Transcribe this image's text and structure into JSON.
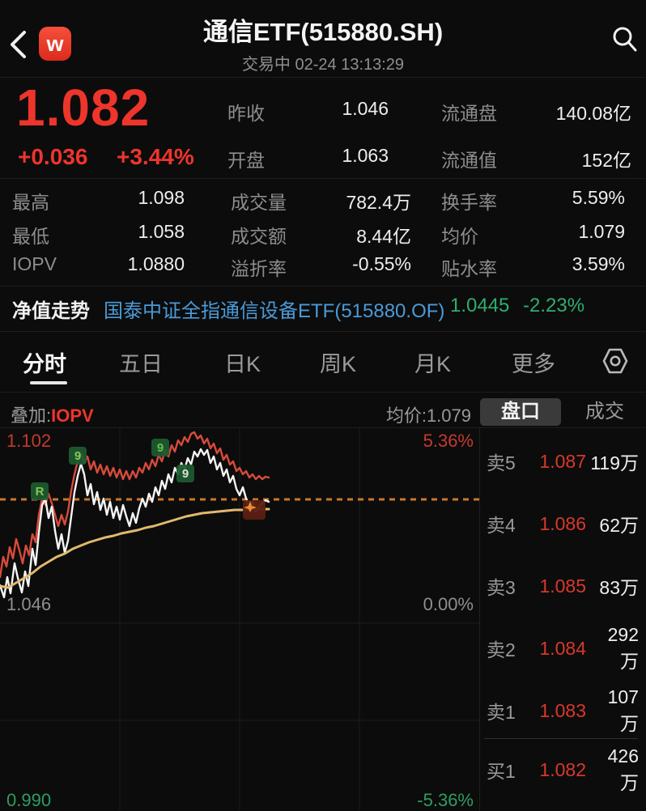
{
  "colors": {
    "red": "#ee352b",
    "book_red": "#d8382c",
    "chart_red": "#c53a2e",
    "green": "#2fae6e",
    "dim_green": "#2f9c62",
    "blue": "#4a9ad8",
    "white_line": "#f5f5f5",
    "red_line": "#d84b3a",
    "yellow_line": "#e2b96d",
    "dashed": "#c8782a",
    "badge_bg": "#1e5c30",
    "pin_bg": "#5d1f12",
    "pin_fg": "#f08c2e"
  },
  "header": {
    "title": "通信ETF(515880.SH)",
    "status_line": "交易中  02-24 13:13:29",
    "logo_letter": "w"
  },
  "quote": {
    "price": "1.082",
    "change": "+0.036",
    "change_pct": "+3.44%",
    "top_rows": [
      {
        "label": "昨收",
        "value": "1.046"
      },
      {
        "label": "流通盘",
        "value": "140.08亿"
      },
      {
        "label": "开盘",
        "value": "1.063"
      },
      {
        "label": "流通值",
        "value": "152亿"
      }
    ],
    "stats": [
      [
        {
          "label": "最高",
          "value": "1.098"
        },
        {
          "label": "成交量",
          "value": "782.4万"
        },
        {
          "label": "换手率",
          "value": "5.59%"
        }
      ],
      [
        {
          "label": "最低",
          "value": "1.058"
        },
        {
          "label": "成交额",
          "value": "8.44亿"
        },
        {
          "label": "均价",
          "value": "1.079"
        }
      ],
      [
        {
          "label": "IOPV",
          "value": "1.0880"
        },
        {
          "label": "溢折率",
          "value": "-0.55%"
        },
        {
          "label": "贴水率",
          "value": "3.59%"
        }
      ]
    ]
  },
  "nav_row": {
    "label": "净值走势",
    "fund_name": "国泰中证全指通信设备ETF(515880.OF)",
    "nav_value": "1.0445",
    "nav_pct": "-2.23%"
  },
  "tabs": [
    "分时",
    "五日",
    "日K",
    "周K",
    "月K",
    "更多"
  ],
  "chart_header": {
    "overlay_label": "叠加:",
    "overlay_value": "IOPV",
    "avg_label": "均价:1.079",
    "panel_tab_active": "盘口",
    "panel_tab_inactive": "成交"
  },
  "chart_data": {
    "type": "line",
    "title": "分时 (intraday minute chart)",
    "labels": {
      "top_left": "1.102",
      "top_right": "5.36%",
      "mid_left": "1.046",
      "mid_right": "0.00%",
      "bottom_left": "0.990",
      "bottom_right": "-5.36%"
    },
    "axis": {
      "high": 1.102,
      "prev_close": 1.046,
      "low": 0.99,
      "pct_range": 5.36,
      "last_price": 1.082,
      "avg_price": 1.079
    },
    "grid": {
      "vx": [
        148,
        296,
        444
      ],
      "hy": [
        242,
        362
      ]
    },
    "dashed_y": 89,
    "series": [
      {
        "name": "iopv",
        "points": [
          [
            0,
            185
          ],
          [
            4,
            160
          ],
          [
            8,
            172
          ],
          [
            12,
            148
          ],
          [
            16,
            162
          ],
          [
            20,
            138
          ],
          [
            24,
            152
          ],
          [
            28,
            168
          ],
          [
            32,
            146
          ],
          [
            36,
            158
          ],
          [
            40,
            132
          ],
          [
            44,
            142
          ],
          [
            48,
            108
          ],
          [
            52,
            88
          ],
          [
            56,
            96
          ],
          [
            60,
            82
          ],
          [
            64,
            94
          ],
          [
            68,
            108
          ],
          [
            72,
            122
          ],
          [
            76,
            108
          ],
          [
            80,
            120
          ],
          [
            84,
            104
          ],
          [
            88,
            78
          ],
          [
            92,
            58
          ],
          [
            96,
            42
          ],
          [
            100,
            32
          ],
          [
            104,
            44
          ],
          [
            108,
            36
          ],
          [
            112,
            52
          ],
          [
            116,
            42
          ],
          [
            120,
            56
          ],
          [
            124,
            46
          ],
          [
            128,
            58
          ],
          [
            132,
            48
          ],
          [
            136,
            60
          ],
          [
            140,
            50
          ],
          [
            144,
            62
          ],
          [
            148,
            52
          ],
          [
            152,
            64
          ],
          [
            156,
            54
          ],
          [
            160,
            64
          ],
          [
            164,
            54
          ],
          [
            168,
            62
          ],
          [
            172,
            50
          ],
          [
            176,
            56
          ],
          [
            180,
            44
          ],
          [
            184,
            52
          ],
          [
            188,
            40
          ],
          [
            192,
            48
          ],
          [
            196,
            34
          ],
          [
            200,
            42
          ],
          [
            204,
            28
          ],
          [
            208,
            36
          ],
          [
            212,
            22
          ],
          [
            216,
            30
          ],
          [
            220,
            16
          ],
          [
            224,
            22
          ],
          [
            228,
            12
          ],
          [
            232,
            18
          ],
          [
            236,
            8
          ],
          [
            240,
            6
          ],
          [
            244,
            14
          ],
          [
            248,
            10
          ],
          [
            252,
            20
          ],
          [
            256,
            14
          ],
          [
            260,
            26
          ],
          [
            264,
            20
          ],
          [
            268,
            32
          ],
          [
            272,
            26
          ],
          [
            276,
            40
          ],
          [
            280,
            34
          ],
          [
            284,
            46
          ],
          [
            288,
            42
          ],
          [
            292,
            54
          ],
          [
            296,
            50
          ],
          [
            300,
            58
          ],
          [
            304,
            54
          ],
          [
            308,
            62
          ],
          [
            312,
            58
          ],
          [
            316,
            64
          ],
          [
            320,
            60
          ],
          [
            324,
            64
          ],
          [
            328,
            61
          ],
          [
            332,
            62
          ]
        ]
      },
      {
        "name": "price",
        "points": [
          [
            0,
            195
          ],
          [
            5,
            210
          ],
          [
            9,
            185
          ],
          [
            13,
            205
          ],
          [
            18,
            168
          ],
          [
            22,
            186
          ],
          [
            27,
            204
          ],
          [
            31,
            178
          ],
          [
            35,
            196
          ],
          [
            40,
            150
          ],
          [
            44,
            170
          ],
          [
            48,
            130
          ],
          [
            52,
            96
          ],
          [
            56,
            88
          ],
          [
            60,
            112
          ],
          [
            64,
            98
          ],
          [
            68,
            128
          ],
          [
            72,
            150
          ],
          [
            76,
            132
          ],
          [
            80,
            155
          ],
          [
            84,
            140
          ],
          [
            88,
            110
          ],
          [
            92,
            80
          ],
          [
            96,
            60
          ],
          [
            100,
            45
          ],
          [
            104,
            58
          ],
          [
            108,
            84
          ],
          [
            112,
            70
          ],
          [
            116,
            95
          ],
          [
            120,
            80
          ],
          [
            124,
            102
          ],
          [
            128,
            88
          ],
          [
            132,
            108
          ],
          [
            136,
            92
          ],
          [
            140,
            112
          ],
          [
            144,
            98
          ],
          [
            148,
            114
          ],
          [
            152,
            96
          ],
          [
            156,
            110
          ],
          [
            160,
            122
          ],
          [
            164,
            106
          ],
          [
            168,
            118
          ],
          [
            172,
            100
          ],
          [
            176,
            88
          ],
          [
            180,
            98
          ],
          [
            184,
            82
          ],
          [
            188,
            92
          ],
          [
            192,
            74
          ],
          [
            196,
            84
          ],
          [
            200,
            66
          ],
          [
            204,
            76
          ],
          [
            208,
            58
          ],
          [
            212,
            68
          ],
          [
            216,
            50
          ],
          [
            220,
            58
          ],
          [
            224,
            44
          ],
          [
            228,
            52
          ],
          [
            232,
            38
          ],
          [
            236,
            46
          ],
          [
            240,
            30
          ],
          [
            244,
            36
          ],
          [
            248,
            27
          ],
          [
            252,
            34
          ],
          [
            256,
            28
          ],
          [
            260,
            44
          ],
          [
            264,
            36
          ],
          [
            268,
            52
          ],
          [
            272,
            44
          ],
          [
            276,
            60
          ],
          [
            280,
            52
          ],
          [
            284,
            68
          ],
          [
            288,
            60
          ],
          [
            292,
            76
          ],
          [
            296,
            84
          ],
          [
            300,
            74
          ],
          [
            304,
            88
          ],
          [
            308,
            98
          ],
          [
            312,
            92
          ],
          [
            316,
            104
          ],
          [
            320,
            98
          ],
          [
            324,
            94
          ],
          [
            328,
            90
          ],
          [
            332,
            92
          ]
        ]
      },
      {
        "name": "avg",
        "points": [
          [
            0,
            196
          ],
          [
            10,
            198
          ],
          [
            20,
            192
          ],
          [
            30,
            186
          ],
          [
            40,
            180
          ],
          [
            50,
            172
          ],
          [
            60,
            166
          ],
          [
            70,
            160
          ],
          [
            80,
            156
          ],
          [
            90,
            150
          ],
          [
            100,
            146
          ],
          [
            110,
            142
          ],
          [
            120,
            139
          ],
          [
            130,
            136
          ],
          [
            140,
            134
          ],
          [
            150,
            131
          ],
          [
            160,
            129
          ],
          [
            170,
            127
          ],
          [
            180,
            124
          ],
          [
            190,
            122
          ],
          [
            200,
            119
          ],
          [
            210,
            116
          ],
          [
            220,
            113
          ],
          [
            230,
            110
          ],
          [
            240,
            108
          ],
          [
            250,
            106
          ],
          [
            260,
            105
          ],
          [
            270,
            104
          ],
          [
            280,
            103
          ],
          [
            290,
            102
          ],
          [
            300,
            102
          ],
          [
            310,
            101
          ],
          [
            320,
            101
          ],
          [
            332,
            101
          ]
        ]
      }
    ],
    "markers": [
      {
        "x": 38,
        "y": 68,
        "glyph": "R",
        "fg": "#8fd45a"
      },
      {
        "x": 85,
        "y": 24,
        "glyph": "9",
        "fg": "#8fd45a"
      },
      {
        "x": 187,
        "y": 14,
        "glyph": "9",
        "fg": "#6fcf4f"
      },
      {
        "x": 218,
        "y": 46,
        "glyph": "9",
        "fg": "#e8f5e0"
      }
    ],
    "pin": {
      "x": 300,
      "y": 90
    }
  },
  "order_book": {
    "asks": [
      {
        "level": "卖5",
        "price": "1.087",
        "volume": "119万"
      },
      {
        "level": "卖4",
        "price": "1.086",
        "volume": "62万"
      },
      {
        "level": "卖3",
        "price": "1.085",
        "volume": "83万"
      },
      {
        "level": "卖2",
        "price": "1.084",
        "volume": "292万"
      },
      {
        "level": "卖1",
        "price": "1.083",
        "volume": "107万"
      }
    ],
    "bids": [
      {
        "level": "买1",
        "price": "1.082",
        "volume": "426万"
      }
    ]
  }
}
